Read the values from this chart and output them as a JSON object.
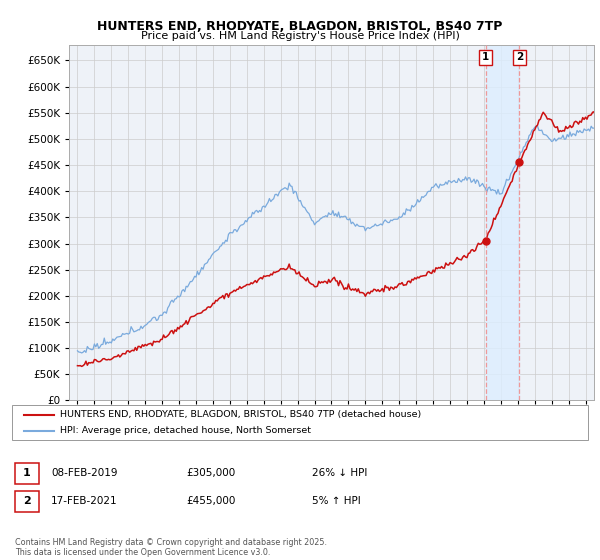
{
  "title": "HUNTERS END, RHODYATE, BLAGDON, BRISTOL, BS40 7TP",
  "subtitle": "Price paid vs. HM Land Registry's House Price Index (HPI)",
  "legend_line1": "HUNTERS END, RHODYATE, BLAGDON, BRISTOL, BS40 7TP (detached house)",
  "legend_line2": "HPI: Average price, detached house, North Somerset",
  "footnote": "Contains HM Land Registry data © Crown copyright and database right 2025.\nThis data is licensed under the Open Government Licence v3.0.",
  "table": [
    {
      "num": "1",
      "date": "08-FEB-2019",
      "price": "£305,000",
      "hpi": "26% ↓ HPI"
    },
    {
      "num": "2",
      "date": "17-FEB-2021",
      "price": "£455,000",
      "hpi": "5% ↑ HPI"
    }
  ],
  "marker1_year": 2019.1,
  "marker2_year": 2021.1,
  "marker1_price": 305000,
  "marker2_price": 455000,
  "hpi_color": "#7aaadd",
  "price_color": "#cc1111",
  "vline_color": "#ee9999",
  "highlight_color": "#ddeeff",
  "ylim": [
    0,
    680000
  ],
  "xlim_start": 1994.5,
  "xlim_end": 2025.5,
  "grid_color": "#cccccc",
  "bg_color": "#ffffff",
  "plot_bg_color": "#eef2f8"
}
